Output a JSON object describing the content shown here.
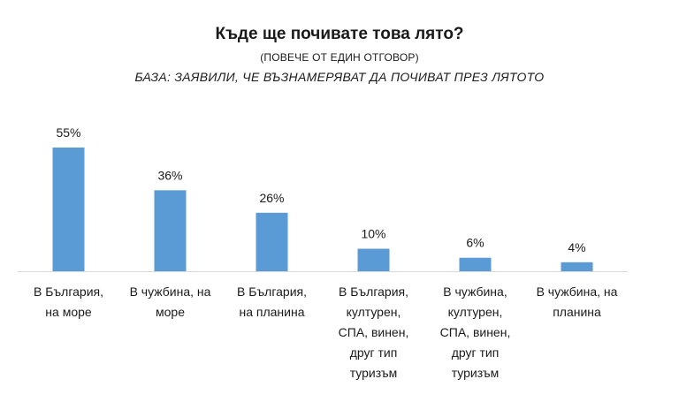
{
  "chart_data": {
    "type": "bar",
    "title": "Къде ще почивате това лято?",
    "subtitle": "(ПОВЕЧЕ ОТ ЕДИН ОТГОВОР)",
    "note": "БАЗА: ЗАЯВИЛИ, ЧЕ ВЪЗНАМЕРЯВАТ ДА ПОЧИВАТ ПРЕЗ ЛЯТОТО",
    "categories": [
      "В България,\nна море",
      "В чужбина, на\nморе",
      "В България,\nна планина",
      "В България,\nкултурен,\nСПА, винен,\nдруг тип\nтуризъм",
      "В чужбина,\nкултурен,\nСПА, винен,\nдруг тип\nтуризъм",
      "В чужбина, на\nпланина"
    ],
    "values": [
      55,
      36,
      26,
      10,
      6,
      4
    ],
    "data_labels": [
      "55%",
      "36%",
      "26%",
      "10%",
      "6%",
      "4%"
    ],
    "bar_color": "#5b9bd5",
    "axis_color": "#d9d9d9",
    "grid": false,
    "legend": "none"
  }
}
